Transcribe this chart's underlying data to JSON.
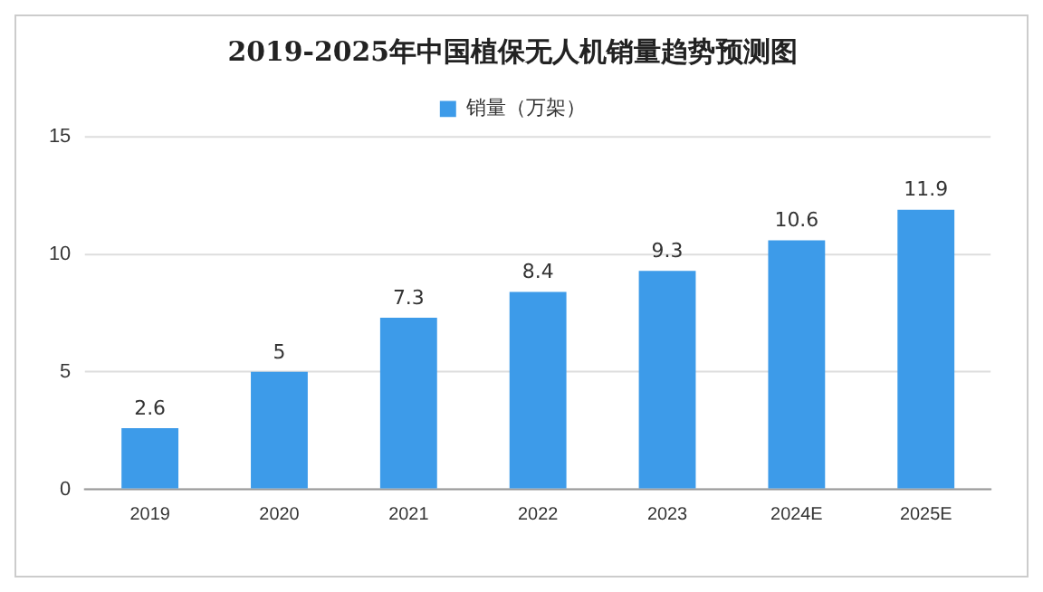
{
  "chart_data": {
    "type": "bar",
    "title": "2019-2025年中国植保无人机销量趋势预测图",
    "categories": [
      "2019",
      "2020",
      "2021",
      "2022",
      "2023",
      "2024E",
      "2025E"
    ],
    "series": [
      {
        "name": "销量（万架）",
        "color": "#3d9be9",
        "values": [
          2.6,
          5,
          7.3,
          8.4,
          9.3,
          10.6,
          11.9
        ]
      }
    ],
    "ylim": [
      0,
      15
    ],
    "yticks": [
      0,
      5,
      10,
      15
    ],
    "grid": "y",
    "legend": "top",
    "data_labels": true
  }
}
